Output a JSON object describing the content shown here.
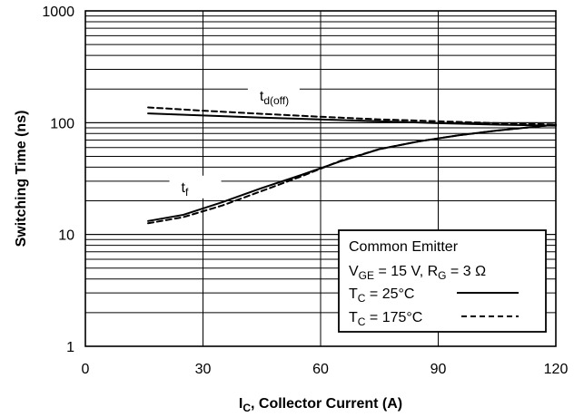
{
  "chart_data": {
    "type": "line",
    "title": "",
    "xlabel": {
      "main": "I",
      "sub": "C",
      "rest": ", Collector Current (A)"
    },
    "ylabel": "Switching Time (ns)",
    "xlim": [
      0,
      120
    ],
    "ylim": [
      1,
      1000
    ],
    "y_scale": "log",
    "grid": true,
    "x_ticks": [
      0,
      30,
      60,
      90,
      120
    ],
    "x_tick_labels": [
      "0",
      "30",
      "60",
      "90",
      "120"
    ],
    "y_ticks": [
      1,
      10,
      100,
      1000
    ],
    "y_tick_labels": [
      "1",
      "10",
      "100",
      "1000"
    ],
    "legend": {
      "placement": "bottom-right",
      "lines": [
        {
          "text": "Common Emitter"
        },
        {
          "parts": [
            {
              "text": "V"
            },
            {
              "text": "GE",
              "sub": true
            },
            {
              "text": " = 15 V, R"
            },
            {
              "text": "G",
              "sub": true
            },
            {
              "text": " = 3 Ω"
            }
          ]
        },
        {
          "parts": [
            {
              "text": "T"
            },
            {
              "text": "C",
              "sub": true
            },
            {
              "text": " = 25°C"
            }
          ],
          "sample_style": "solid"
        },
        {
          "parts": [
            {
              "text": "T"
            },
            {
              "text": "C",
              "sub": true
            },
            {
              "text": " = 175°C"
            }
          ],
          "sample_style": "dashed"
        }
      ]
    },
    "annotations": [
      {
        "main": "t",
        "sub": "d(off)",
        "x": 47,
        "y": 158
      },
      {
        "main": "t",
        "sub": "f",
        "x": 27,
        "y": 24
      }
    ],
    "series": [
      {
        "name": "t_d(off), T_C = 25°C",
        "style": "solid",
        "x": [
          16,
          30,
          45,
          60,
          75,
          90,
          105,
          120
        ],
        "y": [
          121,
          116,
          111,
          107,
          103,
          99,
          96,
          94
        ]
      },
      {
        "name": "t_d(off), T_C = 175°C",
        "style": "dashed",
        "x": [
          16,
          30,
          45,
          60,
          75,
          90,
          105,
          120
        ],
        "y": [
          137,
          128,
          120,
          113,
          107,
          103,
          99,
          96
        ]
      },
      {
        "name": "t_f, T_C = 25°C",
        "style": "solid",
        "x": [
          16,
          25,
          35,
          45,
          55,
          65,
          75,
          85,
          95,
          105,
          120
        ],
        "y": [
          13.2,
          15.0,
          19.5,
          26.0,
          34.0,
          45.0,
          58.0,
          68.0,
          77.0,
          85.0,
          96.0
        ]
      },
      {
        "name": "t_f, T_C = 175°C",
        "style": "dashed",
        "x": [
          16,
          25,
          35,
          45,
          55,
          65,
          75,
          85,
          95,
          105,
          120
        ],
        "y": [
          12.6,
          14.3,
          18.2,
          24.5,
          33.0,
          45.5,
          58.0,
          68.0,
          77.0,
          85.0,
          96.0
        ]
      }
    ]
  }
}
